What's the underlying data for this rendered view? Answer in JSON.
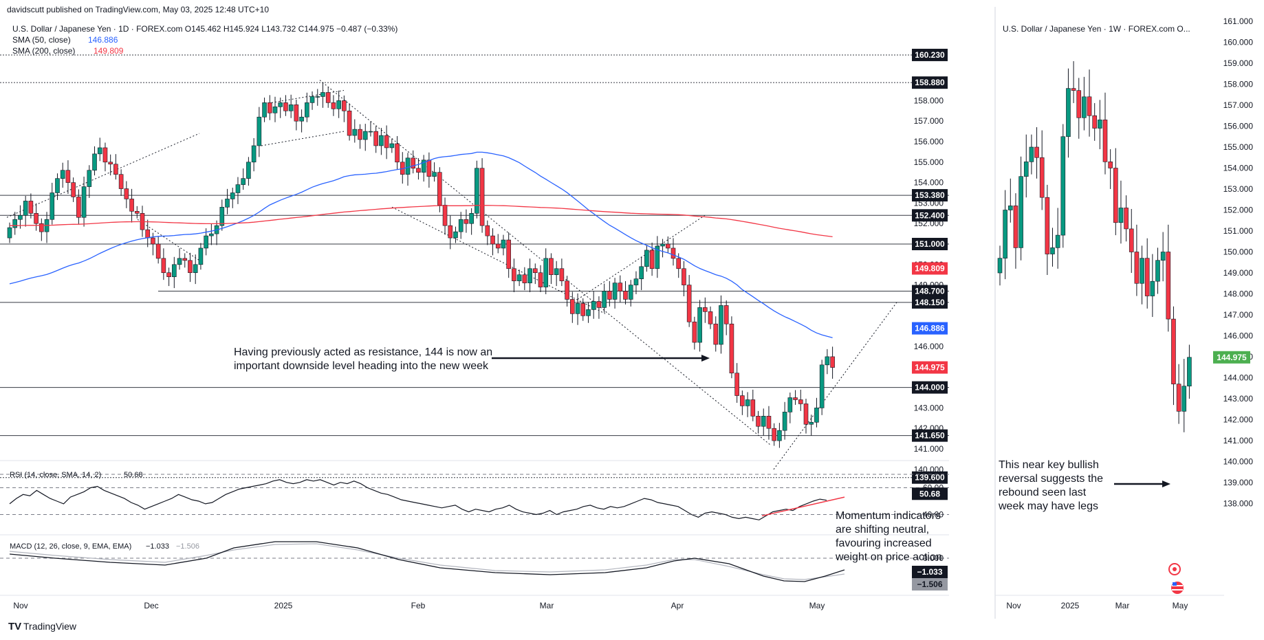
{
  "header": {
    "published": "davidscutt published on TradingView.com, May 03, 2025 12:48 UTC+10"
  },
  "footer": {
    "brand": "TradingView"
  },
  "daily": {
    "title": "U.S. Dollar / Japanese Yen · 1D · FOREX.com  O145.462  H145.924  L143.732  C144.975  −0.487 (−0.33%)",
    "sma50_label": "SMA (50, close)",
    "sma50_value": "146.886",
    "sma200_label": "SMA (200, close)",
    "sma200_value": "149.809",
    "price_ticks": [
      "158.000",
      "157.000",
      "156.000",
      "155.000",
      "154.000",
      "153.000",
      "152.000",
      "150.000",
      "149.000",
      "146.000",
      "143.000",
      "142.000",
      "141.000",
      "140.000"
    ],
    "price_tick_values": [
      158,
      157,
      156,
      155,
      154,
      153,
      152,
      150,
      149,
      146,
      143,
      142,
      141,
      140
    ],
    "levels": [
      "160.230",
      "158.880",
      "153.380",
      "152.400",
      "151.000",
      "148.700",
      "148.150",
      "144.000",
      "141.650",
      "139.600"
    ],
    "level_values": [
      160.23,
      158.88,
      153.38,
      152.4,
      151.0,
      148.7,
      148.15,
      144.0,
      141.65,
      139.6
    ],
    "badges": {
      "sma200": {
        "text": "149.809",
        "color": "#f23645"
      },
      "sma50": {
        "text": "146.886",
        "color": "#2962ff"
      },
      "last": {
        "text": "144.975",
        "color": "#f23645"
      }
    },
    "annotation": "Having previously acted as resistance, 144 is now an important downside level heading into the new week",
    "x_labels": [
      "Nov",
      "Dec",
      "2025",
      "Feb",
      "Mar",
      "Apr",
      "May"
    ],
    "rsi": {
      "label": "RSI (14, close, SMA, 14, 2)",
      "value": "50.68",
      "ticks": [
        "60.00",
        "40.00"
      ]
    },
    "macd": {
      "label": "MACD (12, 26, close, 9, EMA, EMA)",
      "macd_value": "−1.033",
      "signal_value": "−1.506",
      "ticks": [
        "0.000"
      ]
    },
    "momentum_note": "Momentum indicators are shifting neutral, favouring increased weight on price action"
  },
  "weekly": {
    "title": "U.S. Dollar / Japanese Yen · 1W · FOREX.com  O...",
    "price_ticks": [
      "161.000",
      "160.000",
      "159.000",
      "158.000",
      "157.000",
      "156.000",
      "155.000",
      "154.000",
      "153.000",
      "152.000",
      "151.000",
      "150.000",
      "149.000",
      "148.000",
      "147.000",
      "146.000",
      "145.000",
      "144.000",
      "143.000",
      "142.000",
      "141.000",
      "140.000",
      "139.000",
      "138.000"
    ],
    "price_tick_values": [
      161,
      160,
      159,
      158,
      157,
      156,
      155,
      154,
      153,
      152,
      151,
      150,
      149,
      148,
      147,
      146,
      145,
      144,
      143,
      142,
      141,
      140,
      139,
      138
    ],
    "last_badge": {
      "text": "144.975",
      "color": "#4caf50"
    },
    "x_labels": [
      "Nov",
      "2025",
      "Mar",
      "May"
    ],
    "annotation": "This near key bullish reversal suggests the rebound seen last week may have legs"
  },
  "chart_data": [
    {
      "type": "candlestick",
      "title": "U.S. Dollar / Japanese Yen · 1D · FOREX.com",
      "ohlc_last": {
        "open": 145.462,
        "high": 145.924,
        "low": 143.732,
        "close": 144.975
      },
      "change": -0.487,
      "change_pct": -0.33,
      "series": [
        {
          "name": "SMA (50, close)",
          "last": 146.886,
          "color": "#2962ff"
        },
        {
          "name": "SMA (200, close)",
          "last": 149.809,
          "color": "#f23645"
        }
      ],
      "horizontal_levels": [
        160.23,
        158.88,
        153.38,
        152.4,
        151.0,
        148.7,
        148.15,
        144.0,
        141.65,
        139.6
      ],
      "x_labels": [
        "Nov",
        "Dec",
        "2025",
        "Feb",
        "Mar",
        "Apr",
        "May"
      ],
      "daily_closes": [
        151.8,
        152.2,
        152.4,
        153.1,
        152.5,
        152.0,
        151.6,
        152.2,
        153.5,
        154.2,
        154.6,
        154.0,
        153.3,
        152.3,
        153.8,
        154.6,
        155.4,
        155.7,
        155.0,
        154.9,
        154.4,
        153.7,
        153.2,
        152.6,
        152.5,
        151.7,
        151.3,
        151.0,
        150.3,
        149.6,
        149.4,
        150.0,
        150.3,
        150.2,
        149.6,
        150.0,
        150.8,
        151.4,
        151.5,
        151.9,
        152.8,
        153.2,
        153.5,
        153.9,
        154.2,
        155.0,
        155.8,
        157.2,
        157.9,
        157.4,
        157.7,
        157.9,
        157.5,
        157.8,
        157.0,
        157.2,
        157.9,
        158.2,
        158.2,
        158.4,
        157.9,
        157.6,
        158.0,
        157.5,
        156.3,
        156.6,
        156.1,
        156.5,
        156.5,
        155.8,
        156.3,
        155.7,
        155.9,
        155.0,
        154.4,
        155.2,
        154.7,
        154.5,
        155.1,
        154.3,
        154.5,
        152.9,
        151.9,
        151.3,
        151.6,
        152.2,
        152.0,
        152.5,
        154.7,
        151.9,
        151.4,
        151.0,
        150.8,
        151.2,
        149.8,
        149.2,
        149.5,
        149.1,
        149.8,
        149.6,
        148.9,
        150.3,
        149.5,
        149.8,
        149.2,
        148.3,
        147.6,
        148.1,
        147.5,
        147.8,
        148.2,
        147.9,
        148.7,
        148.3,
        149.1,
        148.7,
        148.3,
        149.0,
        149.3,
        149.9,
        150.7,
        149.8,
        150.9,
        151.0,
        150.8,
        150.3,
        149.8,
        149.0,
        147.2,
        146.2,
        147.9,
        147.7,
        147.1,
        146.1,
        148.0,
        147.1,
        144.7,
        143.6,
        143.1,
        143.4,
        142.6,
        142.1,
        142.6,
        142.0,
        141.4,
        141.9,
        142.8,
        143.5,
        143.4,
        143.2,
        142.2,
        142.3,
        143.0,
        145.1,
        145.5,
        144.975
      ]
    },
    {
      "type": "candlestick",
      "title": "U.S. Dollar / Japanese Yen · 1W · FOREX.com",
      "x_labels": [
        "Nov",
        "2025",
        "Mar",
        "May"
      ],
      "weekly_closes": [
        149.7,
        152.0,
        152.2,
        150.2,
        153.6,
        154.3,
        155.0,
        154.5,
        152.6,
        149.9,
        150.2,
        150.8,
        155.5,
        157.8,
        157.7,
        156.4,
        157.4,
        156.5,
        155.9,
        156.3,
        154.3,
        154.0,
        151.4,
        152.1,
        151.1,
        150.0,
        148.5,
        149.7,
        147.9,
        148.6,
        149.6,
        150.0,
        146.8,
        143.7,
        142.4,
        143.6,
        144.975
      ],
      "last": 144.975
    },
    {
      "type": "line",
      "title": "RSI (14, close, SMA, 14, 2)",
      "ylim": [
        30,
        70
      ],
      "last": 50.68,
      "values": [
        48,
        52,
        55,
        54,
        58,
        55,
        52,
        50,
        48,
        53,
        55,
        57,
        60,
        61,
        58,
        56,
        54,
        52,
        49,
        47,
        44,
        46,
        48,
        50,
        52,
        55,
        53,
        51,
        50,
        48,
        49,
        52,
        55,
        57,
        59,
        60,
        61,
        62,
        63,
        65,
        66,
        64,
        63,
        64,
        66,
        65,
        66,
        64,
        62,
        64,
        63,
        65,
        63,
        60,
        58,
        56,
        55,
        53,
        51,
        50,
        49,
        48,
        47,
        46,
        45,
        46,
        47,
        44,
        42,
        44,
        43,
        42,
        44,
        45,
        47,
        44,
        42,
        41,
        40,
        41,
        43,
        40,
        42,
        43,
        44,
        46,
        47,
        45,
        44,
        46,
        45,
        46,
        48,
        50,
        52,
        51,
        49,
        48,
        47,
        46,
        43,
        40,
        38,
        41,
        42,
        41,
        40,
        38,
        37,
        38,
        37,
        36,
        39,
        42,
        43,
        44,
        43,
        46,
        48,
        50,
        51.5,
        50.68
      ]
    },
    {
      "type": "line",
      "title": "MACD (12, 26, close, 9, EMA, EMA)",
      "series": [
        {
          "name": "MACD",
          "last": -1.033
        },
        {
          "name": "Signal",
          "last": -1.506
        }
      ]
    }
  ]
}
